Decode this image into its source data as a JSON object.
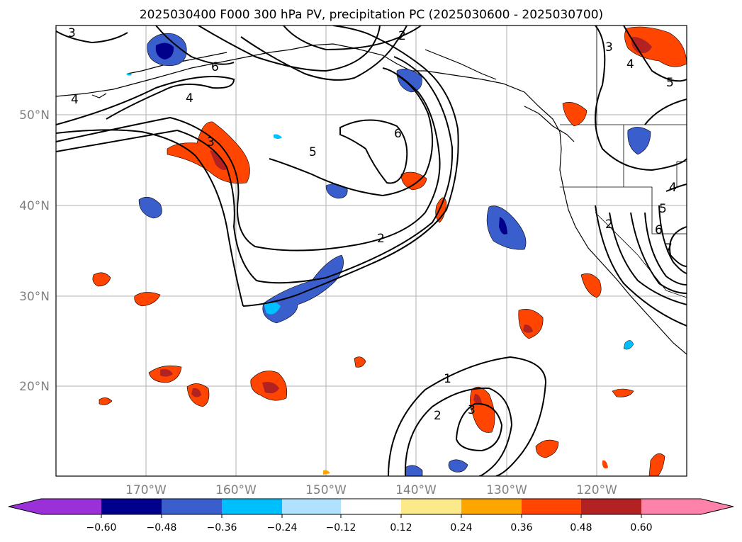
{
  "title": "2025030400 F000 300 hPa PV, precipitation PC (2025030600 - 2025030700)",
  "map": {
    "lon_labels": [
      "170°W",
      "160°W",
      "150°W",
      "140°W",
      "130°W",
      "120°W"
    ],
    "lat_labels": [
      "50°N",
      "40°N",
      "30°N",
      "20°N"
    ]
  },
  "colorbar": {
    "tick_labels": [
      "−0.60",
      "−0.48",
      "−0.36",
      "−0.24",
      "−0.12",
      "0.12",
      "0.24",
      "0.36",
      "0.48",
      "0.60"
    ],
    "colors": [
      "#9b30d9",
      "#00008b",
      "#3a5fcd",
      "#00bfff",
      "#b0e2ff",
      "#ffffff",
      "#fbe98a",
      "#ffa500",
      "#ff4500",
      "#b22222",
      "#ff82ab"
    ]
  },
  "contour_labels": [
    "3",
    "4",
    "6",
    "4",
    "3",
    "5",
    "2",
    "6",
    "5",
    "2",
    "3",
    "4",
    "5",
    "4",
    "5",
    "6",
    "7",
    "2",
    "1",
    "2",
    "3"
  ]
}
